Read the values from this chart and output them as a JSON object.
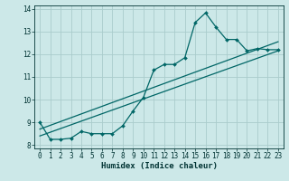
{
  "xlabel": "Humidex (Indice chaleur)",
  "bg_color": "#cce8e8",
  "line_color": "#006666",
  "grid_color": "#aacccc",
  "xlim": [
    -0.5,
    23.5
  ],
  "ylim": [
    7.85,
    14.15
  ],
  "xticks": [
    0,
    1,
    2,
    3,
    4,
    5,
    6,
    7,
    8,
    9,
    10,
    11,
    12,
    13,
    14,
    15,
    16,
    17,
    18,
    19,
    20,
    21,
    22,
    23
  ],
  "yticks": [
    8,
    9,
    10,
    11,
    12,
    13,
    14
  ],
  "line1_x": [
    0,
    1,
    2,
    3,
    4,
    5,
    6,
    7,
    8,
    9,
    10,
    11,
    12,
    13,
    14,
    15,
    16,
    17,
    18,
    19,
    20,
    21,
    22,
    23
  ],
  "line1_y": [
    9.0,
    8.25,
    8.25,
    8.3,
    8.6,
    8.5,
    8.5,
    8.5,
    8.85,
    9.5,
    10.1,
    11.3,
    11.55,
    11.55,
    11.85,
    13.4,
    13.82,
    13.2,
    12.65,
    12.65,
    12.15,
    12.25,
    12.2,
    12.2
  ],
  "line2_x": [
    0,
    23
  ],
  "line2_y": [
    8.4,
    12.15
  ],
  "line3_x": [
    0,
    23
  ],
  "line3_y": [
    8.7,
    12.55
  ]
}
